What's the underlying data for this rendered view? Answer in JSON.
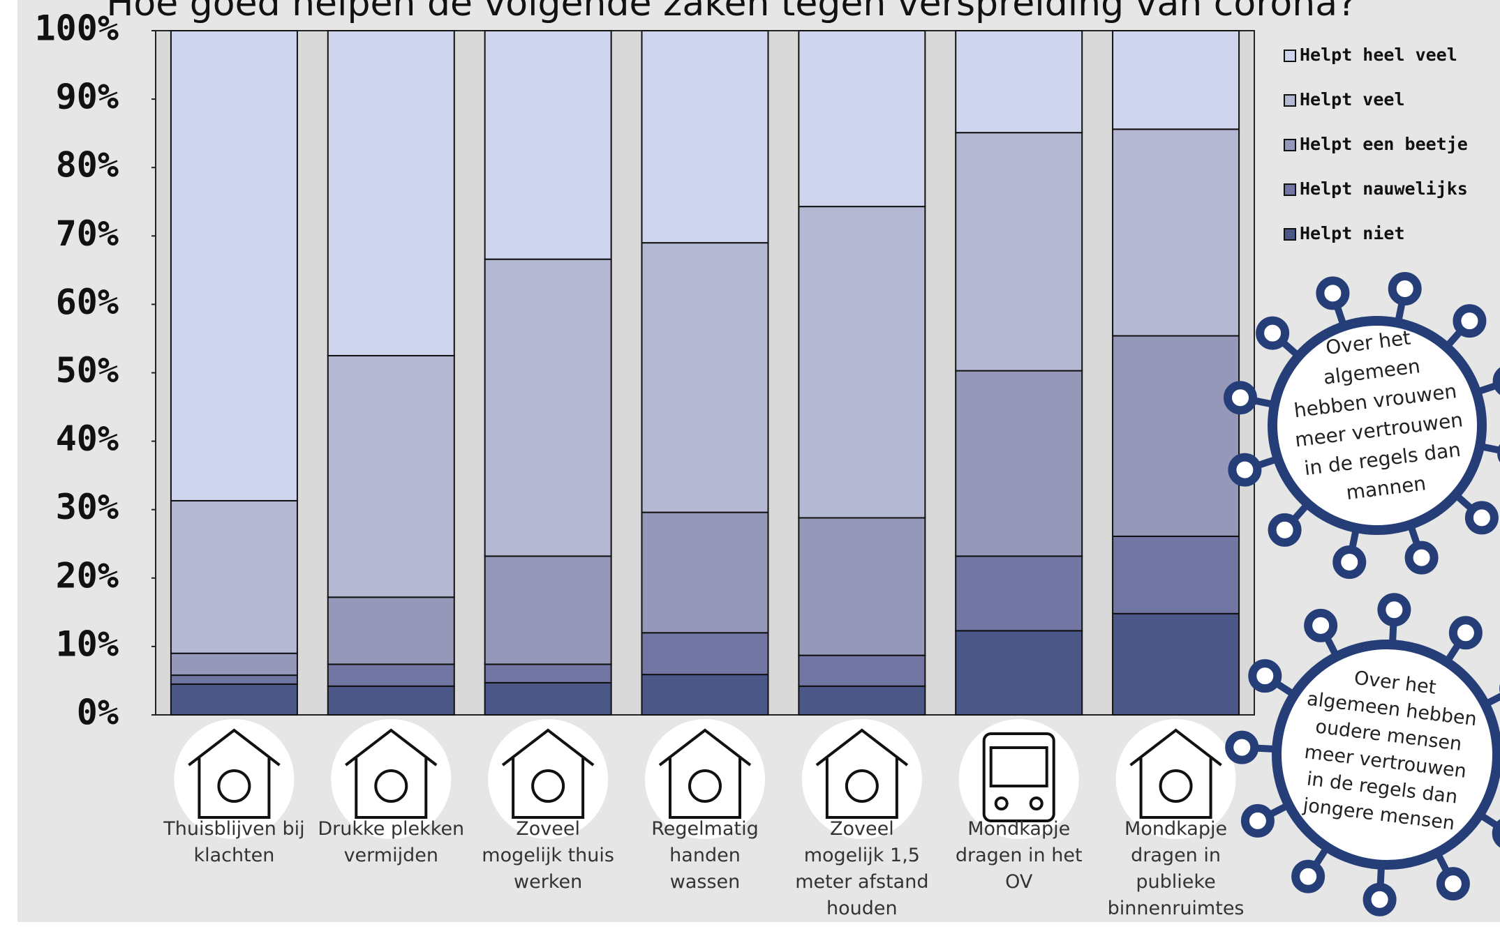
{
  "chart_data": {
    "type": "stacked_bar",
    "title": "Hoe goed helpen de volgende zaken tegen verspreiding van corona?",
    "categories": [
      "Thuisblijven bij klachten",
      "Drukke plekken vermijden",
      "Zoveel mogelijk thuis werken",
      "Regelmatig handen wassen",
      "Zoveel mogelijk 1,5 meter afstand houden",
      "Mondkapje dragen in het OV",
      "Mondkapje dragen in publieke binnenruimtes"
    ],
    "series": [
      {
        "name": "Helpt niet",
        "color": "#4b5787",
        "values": [
          4.5,
          4.2,
          4.7,
          5.9,
          4.2,
          12.3,
          14.8
        ]
      },
      {
        "name": "Helpt nauwelijks",
        "color": "#7176a3",
        "values": [
          1.3,
          3.2,
          2.7,
          6.1,
          4.5,
          10.9,
          11.3
        ]
      },
      {
        "name": "Helpt een beetje",
        "color": "#9598b8",
        "values": [
          3.2,
          9.8,
          15.8,
          17.6,
          20.1,
          27.1,
          29.3
        ]
      },
      {
        "name": "Helpt veel",
        "color": "#b5b8d2",
        "values": [
          22.3,
          35.3,
          43.4,
          39.4,
          45.5,
          34.8,
          30.2
        ]
      },
      {
        "name": "Helpt heel veel",
        "color": "#cfd5ec",
        "values": [
          68.7,
          47.5,
          33.4,
          31.0,
          25.7,
          14.9,
          14.4
        ]
      }
    ],
    "ylim": [
      0,
      100
    ],
    "yticks": [
      {
        "value": 0,
        "label": "0%"
      },
      {
        "value": 10,
        "label": "10%"
      },
      {
        "value": 20,
        "label": "20%"
      },
      {
        "value": 30,
        "label": "30%"
      },
      {
        "value": 40,
        "label": "40%"
      },
      {
        "value": 50,
        "label": "50%"
      },
      {
        "value": 60,
        "label": "60%"
      },
      {
        "value": 70,
        "label": "70%"
      },
      {
        "value": 80,
        "label": "80%"
      },
      {
        "value": 90,
        "label": "90%"
      },
      {
        "value": 100,
        "label": "100%"
      }
    ],
    "annotations": [
      "Over het algemeen hebben vrouwen meer vertrouwen in de regels dan mannen",
      "Over het algemeen hebben oudere mensen meer vertrouwen in de regels dan jongere mensen"
    ]
  }
}
